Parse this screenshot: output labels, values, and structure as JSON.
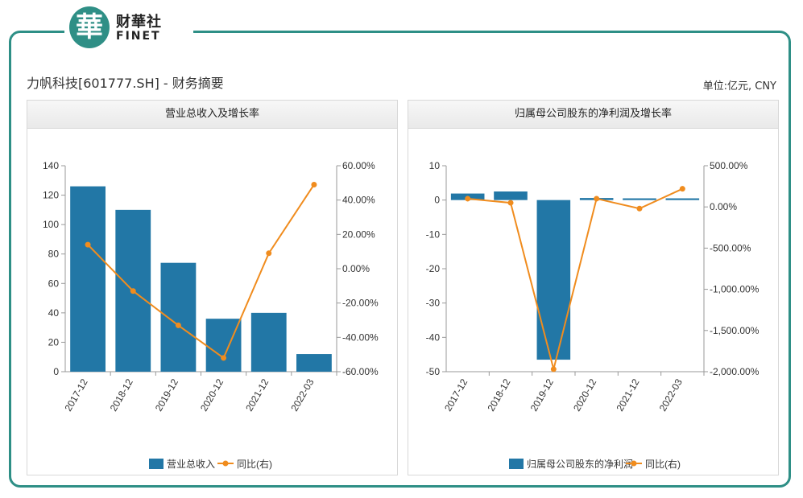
{
  "brand": {
    "logo_char": "華",
    "name_cn": "财華社",
    "name_en": "FINET"
  },
  "page": {
    "title": "力帆科技[601777.SH] - 财务摘要",
    "unit": "单位:亿元, CNY"
  },
  "colors": {
    "bar": "#2277a6",
    "line": "#f08c1e",
    "frame": "#2e8f86"
  },
  "chart_data": [
    {
      "type": "bar",
      "title": "营业总收入及增长率",
      "categories": [
        "2017-12",
        "2018-12",
        "2019-12",
        "2020-12",
        "2021-12",
        "2022-03"
      ],
      "series": [
        {
          "name": "营业总收入",
          "type": "bar",
          "axis": "left",
          "values": [
            126,
            110,
            74,
            36,
            40,
            12
          ]
        },
        {
          "name": "同比(右)",
          "type": "line",
          "axis": "right",
          "values": [
            14,
            -13,
            -33,
            -52,
            9,
            49
          ]
        }
      ],
      "y_left": {
        "min": 0,
        "max": 140,
        "ticks": [
          0,
          20,
          40,
          60,
          80,
          100,
          120,
          140
        ]
      },
      "y_right": {
        "min": -60,
        "max": 60,
        "ticks": [
          -60,
          -40,
          -20,
          0,
          20,
          40,
          60
        ],
        "tick_labels": [
          "-60.00%",
          "-40.00%",
          "-20.00%",
          "0.00%",
          "20.00%",
          "40.00%",
          "60.00%"
        ]
      },
      "legend": "bottom"
    },
    {
      "type": "bar",
      "title": "归属母公司股东的净利润及增长率",
      "categories": [
        "2017-12",
        "2018-12",
        "2019-12",
        "2020-12",
        "2021-12",
        "2022-03"
      ],
      "series": [
        {
          "name": "归属母公司股东的净利润",
          "type": "bar",
          "axis": "left",
          "values": [
            1.9,
            2.5,
            -46.5,
            0.6,
            0.5,
            0.5
          ]
        },
        {
          "name": "同比(右)",
          "type": "line",
          "axis": "right",
          "values": [
            100,
            50,
            -1970,
            100,
            -20,
            220
          ]
        }
      ],
      "y_left": {
        "min": -50,
        "max": 10,
        "ticks": [
          -50,
          -40,
          -30,
          -20,
          -10,
          0,
          10
        ]
      },
      "y_right": {
        "min": -2000,
        "max": 500,
        "ticks": [
          -2000,
          -1500,
          -1000,
          -500,
          0,
          500
        ],
        "tick_labels": [
          "-2,000.00%",
          "-1,500.00%",
          "-1,000.00%",
          "-500.00%",
          "0.00%",
          "500.00%"
        ]
      },
      "legend": "bottom"
    }
  ]
}
